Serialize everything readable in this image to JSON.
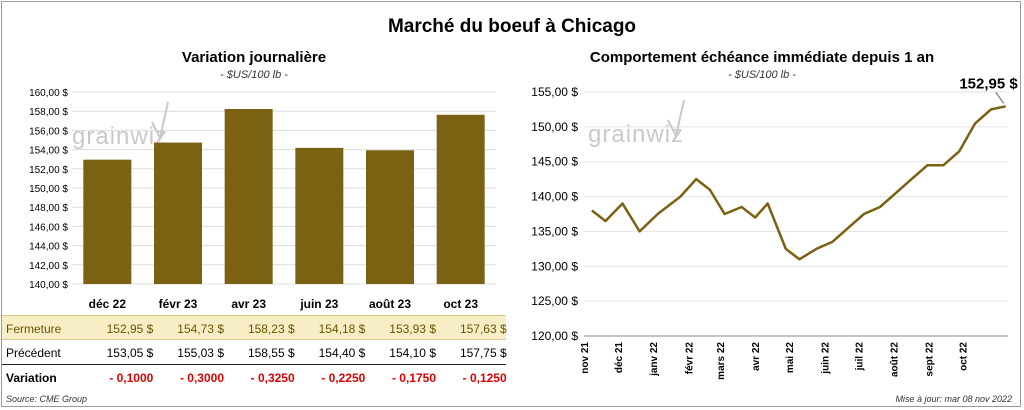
{
  "title": "Marché du boeuf à Chicago",
  "source": "Source: CME Group",
  "updated": "Mise à jour: mar 08 nov 2022",
  "watermark": "grainwiz",
  "colors": {
    "bar": "#7a6212",
    "line": "#7a6212",
    "close_row_bg": "#f8eec5",
    "negative": "#e00000"
  },
  "chart_data": [
    {
      "type": "bar",
      "title": "Variation journalière",
      "subtitle": "- $US/100 lb -",
      "categories": [
        "déc 22",
        "févr 23",
        "avr 23",
        "juin 23",
        "août 23",
        "oct 23"
      ],
      "values": [
        152.95,
        154.73,
        158.23,
        154.18,
        153.93,
        157.63
      ],
      "ylim": [
        140,
        160
      ],
      "yticks": [
        "140,00 $",
        "142,00 $",
        "144,00 $",
        "146,00 $",
        "148,00 $",
        "150,00 $",
        "152,00 $",
        "154,00 $",
        "156,00 $",
        "158,00 $",
        "160,00 $"
      ],
      "grid": true,
      "table": {
        "rows": [
          {
            "label": "Fermeture",
            "values": [
              "152,95  $",
              "154,73  $",
              "158,23  $",
              "154,18  $",
              "153,93  $",
              "157,63  $"
            ]
          },
          {
            "label": "Précédent",
            "values": [
              "153,05  $",
              "155,03  $",
              "158,55  $",
              "154,40  $",
              "154,10  $",
              "157,75  $"
            ]
          },
          {
            "label": "Variation",
            "values": [
              "- 0,1000",
              "- 0,3000",
              "- 0,3250",
              "- 0,2250",
              "- 0,1750",
              "- 0,1250"
            ]
          }
        ]
      }
    },
    {
      "type": "line",
      "title": "Comportement  échéance immédiate depuis 1 an",
      "subtitle": "- $US/100 lb -",
      "ylim": [
        120,
        155
      ],
      "yticks": [
        "120,00 $",
        "125,00 $",
        "130,00 $",
        "135,00 $",
        "140,00 $",
        "145,00 $",
        "150,00 $",
        "155,00 $"
      ],
      "xticks": [
        "nov 21",
        "déc 21",
        "janv 22",
        "févr 22",
        "mars 22",
        "avr 22",
        "mai 22",
        "juin 22",
        "juil 22",
        "août 22",
        "sept 22",
        "oct 22"
      ],
      "last_value_label": "152,95 $",
      "x": [
        "2021-11-08",
        "2021-11-20",
        "2021-12-05",
        "2021-12-20",
        "2022-01-05",
        "2022-01-25",
        "2022-02-08",
        "2022-02-20",
        "2022-03-05",
        "2022-03-20",
        "2022-04-01",
        "2022-04-12",
        "2022-04-28",
        "2022-05-10",
        "2022-05-25",
        "2022-06-08",
        "2022-06-22",
        "2022-07-06",
        "2022-07-20",
        "2022-08-03",
        "2022-08-17",
        "2022-08-31",
        "2022-09-14",
        "2022-09-28",
        "2022-10-12",
        "2022-10-26",
        "2022-11-08"
      ],
      "values": [
        138,
        136.5,
        139,
        135,
        137.5,
        140,
        142.5,
        141,
        137.5,
        138.5,
        137,
        139,
        132.5,
        131,
        132.5,
        133.5,
        135.5,
        137.5,
        138.5,
        140.5,
        142.5,
        144.5,
        144.5,
        146.5,
        150.5,
        152.5,
        152.95
      ]
    }
  ]
}
